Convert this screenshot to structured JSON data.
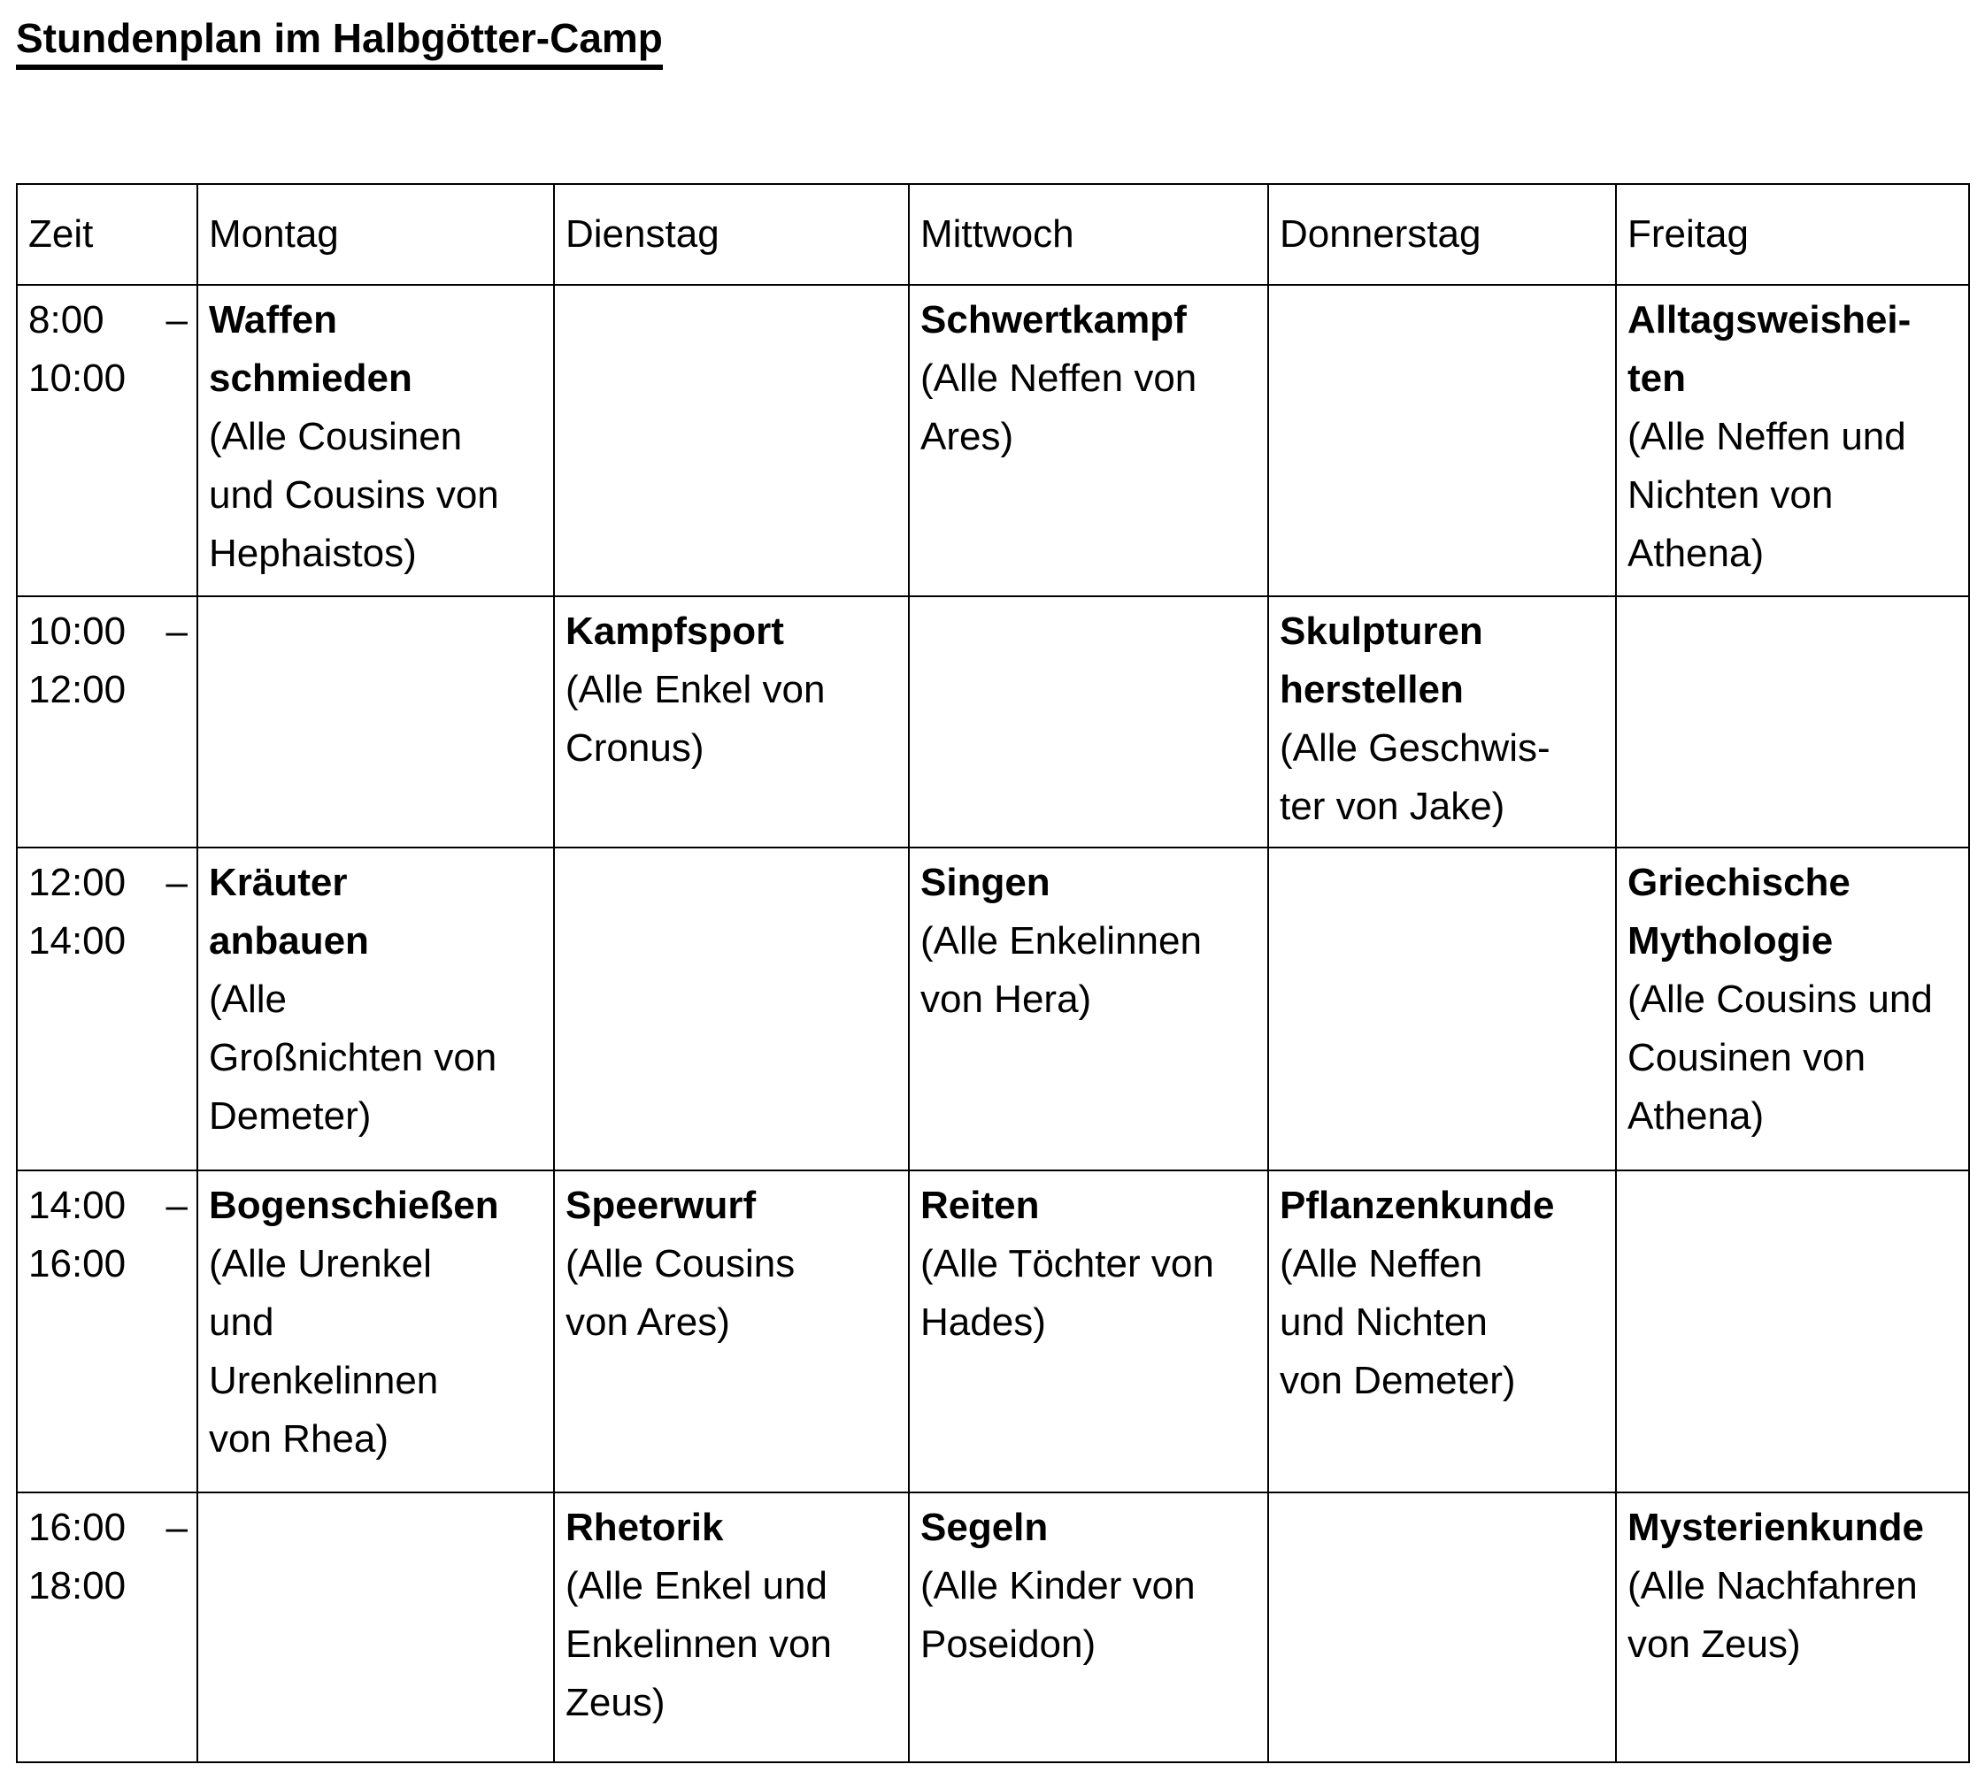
{
  "page": {
    "title": "Stundenplan im Halbgötter-Camp"
  },
  "colors": {
    "text": "#000000",
    "background": "#ffffff",
    "border": "#000000"
  },
  "table": {
    "columns": [
      "Zeit",
      "Montag",
      "Dienstag",
      "Mittwoch",
      "Donnerstag",
      "Freitag"
    ],
    "time_separator": "–",
    "rows": [
      {
        "time": {
          "start": "8:00",
          "end": "10:00"
        },
        "cells": [
          {
            "title": "Waffen\nschmieden",
            "note": "(Alle Cousinen\nund Cousins von\nHephaistos)"
          },
          null,
          {
            "title": "Schwertkampf",
            "note": "(Alle Neffen von\nAres)"
          },
          null,
          {
            "title": "Alltagsweishei-\nten",
            "note": "(Alle Neffen und\nNichten von\nAthena)"
          }
        ]
      },
      {
        "time": {
          "start": "10:00",
          "end": "12:00"
        },
        "cells": [
          null,
          {
            "title": "Kampfsport",
            "note": "(Alle Enkel von\nCronus)"
          },
          null,
          {
            "title": "Skulpturen\nherstellen",
            "note": "(Alle Geschwis-\nter von Jake)"
          },
          null
        ]
      },
      {
        "time": {
          "start": "12:00",
          "end": "14:00"
        },
        "cells": [
          {
            "title": "Kräuter\nanbauen",
            "note": "(Alle\nGroßnichten von\nDemeter)"
          },
          null,
          {
            "title": "Singen",
            "note": "(Alle Enkelinnen\nvon Hera)"
          },
          null,
          {
            "title": "Griechische\nMythologie",
            "note": "(Alle Cousins und\nCousinen von\nAthena)"
          }
        ]
      },
      {
        "time": {
          "start": "14:00",
          "end": "16:00"
        },
        "cells": [
          {
            "title": "Bogenschießen",
            "note": "(Alle Urenkel\nund\nUrenkelinnen\nvon Rhea)"
          },
          {
            "title": "Speerwurf",
            "note": "(Alle Cousins\nvon Ares)"
          },
          {
            "title": "Reiten",
            "note": "(Alle Töchter von\nHades)"
          },
          {
            "title": "Pflanzenkunde",
            "note": "(Alle Neffen\nund Nichten\nvon Demeter)"
          },
          null
        ]
      },
      {
        "time": {
          "start": "16:00",
          "end": "18:00"
        },
        "cells": [
          null,
          {
            "title": "Rhetorik",
            "note": "(Alle Enkel und\nEnkelinnen von\nZeus)"
          },
          {
            "title": "Segeln",
            "note": "(Alle Kinder von\nPoseidon)"
          },
          null,
          {
            "title": "Mysterienkunde",
            "note": "(Alle Nachfahren\nvon Zeus)"
          }
        ]
      }
    ]
  }
}
